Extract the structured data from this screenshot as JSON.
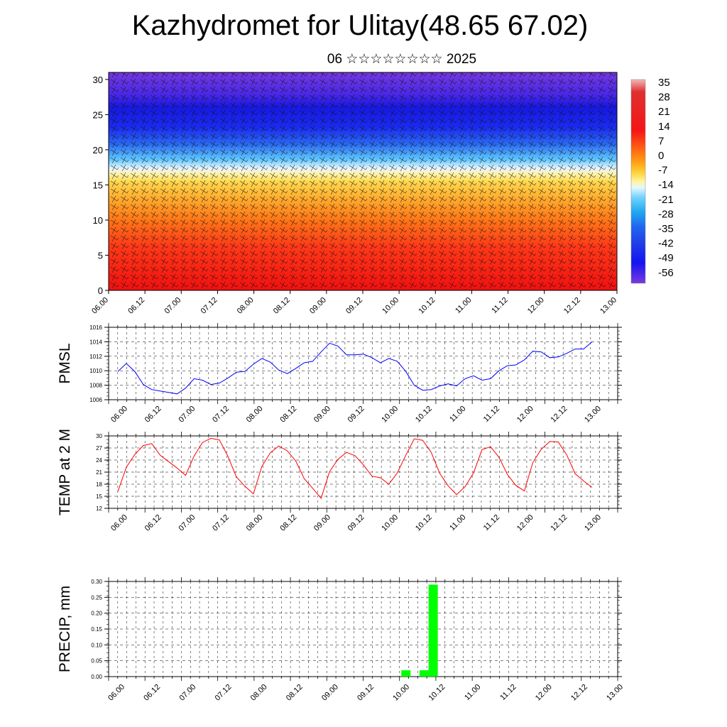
{
  "title": "Kazhydromet for Ulitay(48.65 67.02)",
  "subtitle": "06 ☆☆☆☆☆☆☆☆ 2025",
  "time_labels": [
    "06.00",
    "06.12",
    "07.00",
    "07.12",
    "08.00",
    "08.12",
    "09.00",
    "09.12",
    "10.00",
    "10.12",
    "11.00",
    "11.12",
    "12.00",
    "12.12",
    "13.00"
  ],
  "colors": {
    "pmsl_line": "#0000ff",
    "temp_line": "#ff0000",
    "precip_bar": "#00ff00"
  },
  "chart_data": [
    {
      "type": "heatmap",
      "description_of_fill": "temperature contour with wind barbs",
      "y_ticks": [
        "0",
        "5",
        "10",
        "15",
        "20",
        "25",
        "30"
      ],
      "ylim": [
        0,
        31
      ],
      "colorbar_labels": [
        "35",
        "28",
        "21",
        "14",
        "7",
        "0",
        "-7",
        "-14",
        "-21",
        "-28",
        "-35",
        "-42",
        "-49",
        "-56"
      ],
      "colorbar_colors": [
        "#f0b0b0",
        "#e23030",
        "#f01010",
        "#ff5010",
        "#ff8a10",
        "#ffc020",
        "#fff080",
        "#c8f0ff",
        "#40c8ff",
        "#20a0f0",
        "#2070f0",
        "#2040e8",
        "#1010f0",
        "#7030e0"
      ],
      "grid": false
    },
    {
      "type": "line",
      "ylabel": "PMSL",
      "ylim": [
        1006,
        1016
      ],
      "y_ticks": [
        "1006",
        "1008",
        "1010",
        "1012",
        "1014",
        "1016"
      ],
      "x_start": 0,
      "x_step_hours": 3,
      "values": [
        1009.9,
        1011.0,
        1009.9,
        1008.1,
        1007.4,
        1007.2,
        1007.0,
        1006.8,
        1007.6,
        1008.9,
        1008.7,
        1008.1,
        1008.3,
        1009.0,
        1009.8,
        1009.9,
        1010.9,
        1011.7,
        1011.2,
        1010.1,
        1009.6,
        1010.3,
        1011.1,
        1011.3,
        1012.6,
        1013.8,
        1013.4,
        1012.2,
        1012.2,
        1012.3,
        1011.8,
        1011.1,
        1011.7,
        1011.3,
        1009.9,
        1008.0,
        1007.3,
        1007.4,
        1007.9,
        1008.2,
        1007.9,
        1008.9,
        1009.3,
        1008.7,
        1008.9,
        1010.0,
        1010.7,
        1010.8,
        1011.5,
        1012.7,
        1012.6,
        1011.8,
        1011.9,
        1012.4,
        1013.0,
        1013.0,
        1014.0
      ],
      "grid": true
    },
    {
      "type": "line",
      "ylabel": "TEMP at 2 M",
      "ylim": [
        12,
        30
      ],
      "y_ticks": [
        "12",
        "15",
        "18",
        "21",
        "24",
        "27",
        "30"
      ],
      "x_start": 0,
      "x_step_hours": 3,
      "values": [
        16.2,
        22.2,
        25.4,
        27.6,
        28.1,
        25.2,
        23.6,
        22.0,
        20.2,
        25.0,
        28.4,
        29.4,
        29.0,
        24.9,
        19.8,
        17.5,
        15.6,
        22.4,
        25.8,
        27.5,
        26.3,
        23.8,
        19.4,
        17.0,
        14.5,
        21.1,
        24.2,
        25.9,
        25.1,
        22.8,
        20.0,
        19.6,
        18.0,
        20.8,
        25.2,
        29.3,
        28.9,
        25.9,
        20.7,
        17.6,
        15.4,
        17.4,
        20.8,
        26.6,
        27.3,
        24.7,
        20.4,
        17.7,
        16.3,
        23.4,
        26.7,
        28.6,
        28.5,
        25.3,
        20.6,
        18.8,
        17.2
      ],
      "grid": true
    },
    {
      "type": "bar",
      "ylabel": "PRECIP, mm",
      "ylim": [
        0,
        0.3
      ],
      "y_ticks": [
        "0.00",
        "0.05",
        "0.10",
        "0.15",
        "0.20",
        "0.25",
        "0.30"
      ],
      "bars": [
        {
          "time_hours": 98,
          "value": 0.02
        },
        {
          "time_hours": 104,
          "value": 0.02
        },
        {
          "time_hours": 107,
          "value": 0.29
        }
      ],
      "grid": true
    }
  ]
}
